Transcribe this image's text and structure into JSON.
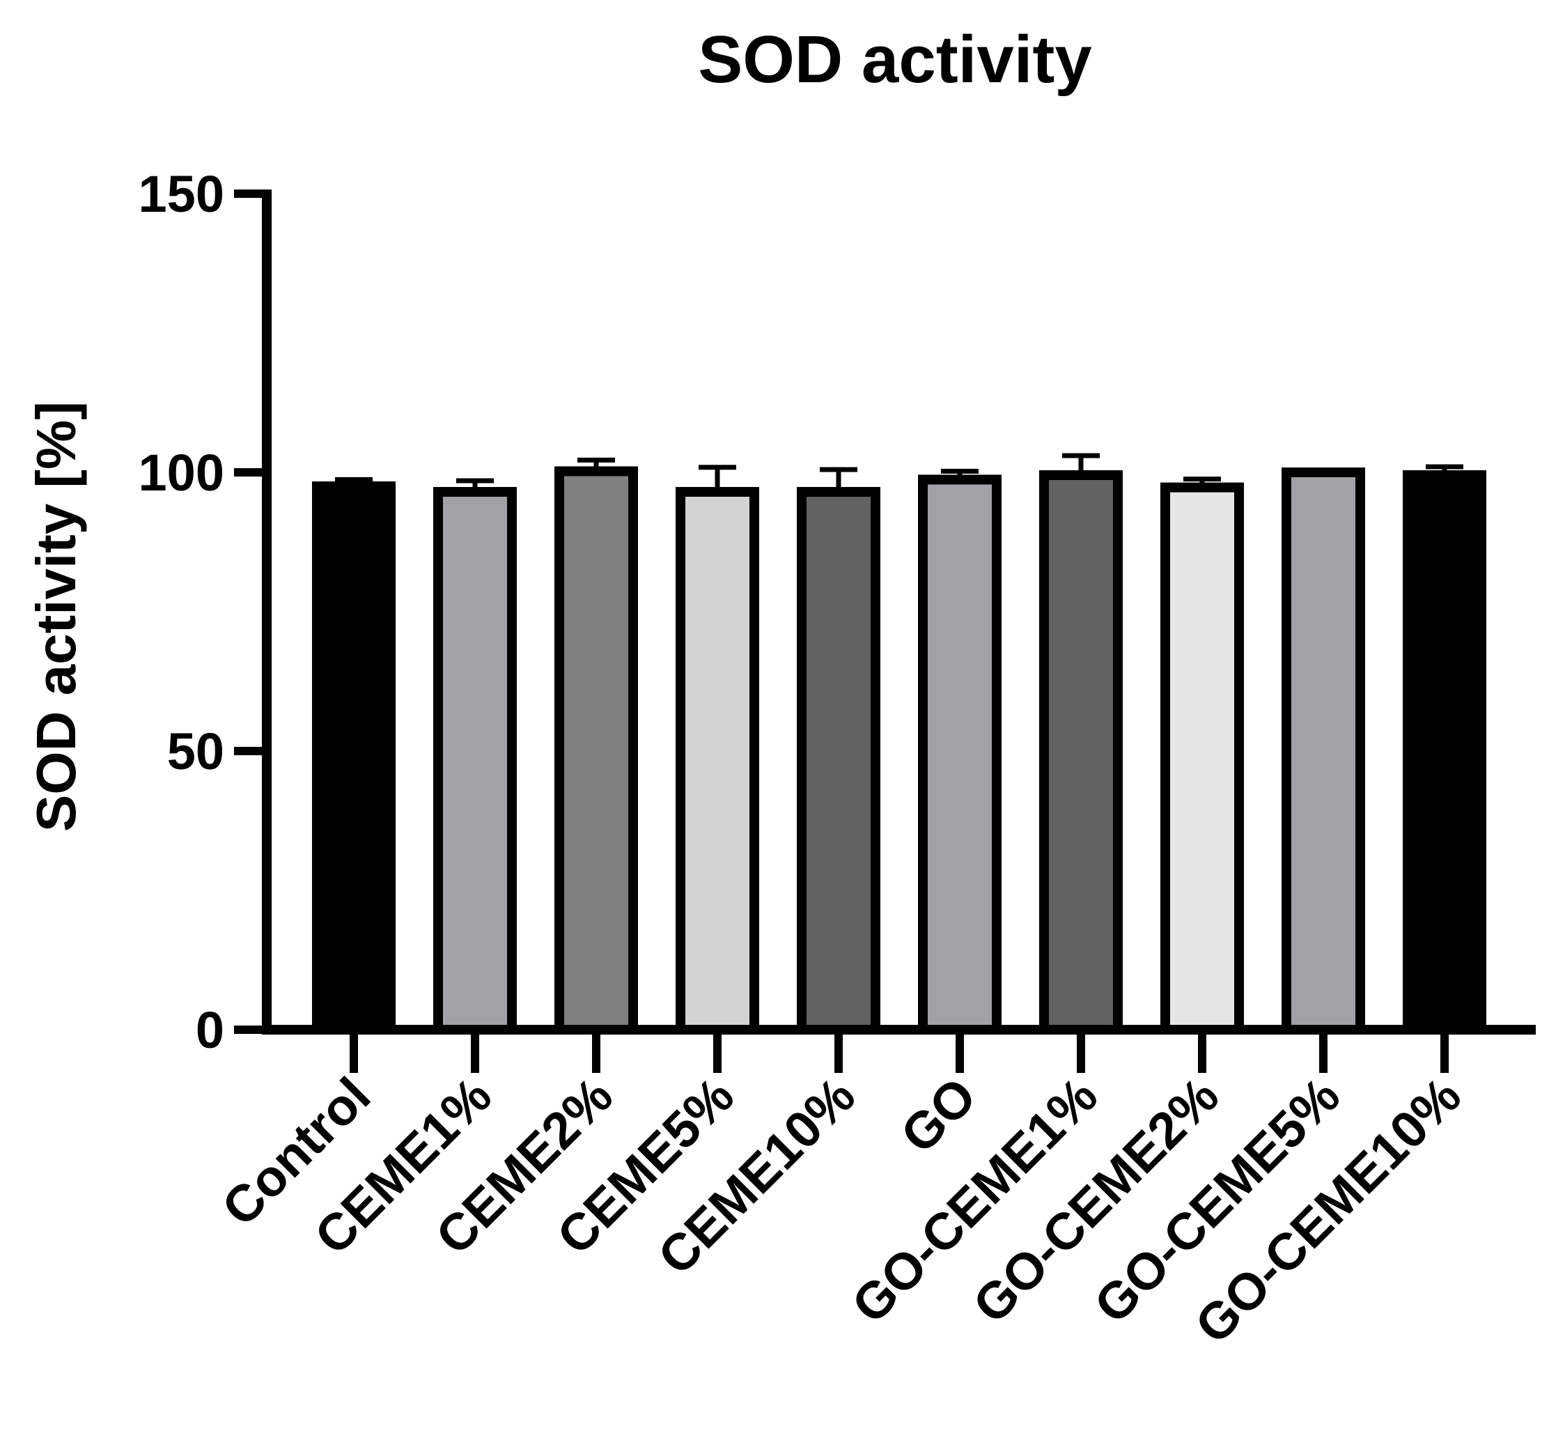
{
  "chart_data": {
    "type": "bar",
    "title": "SOD activity",
    "xlabel": "",
    "ylabel": "SOD activity [%]",
    "ylim": [
      0,
      150
    ],
    "yticks": [
      0,
      50,
      100,
      150
    ],
    "grid": false,
    "categories": [
      "Control",
      "CEME1%",
      "CEME2%",
      "CEME5%",
      "CEME10%",
      "GO",
      "GO-CEME1%",
      "GO-CEME2%",
      "GO-CEME5%",
      "GO-CEME10%"
    ],
    "values": [
      97.5,
      96.5,
      100.2,
      96.5,
      96.5,
      98.7,
      99.5,
      97.3,
      100.0,
      99.5
    ],
    "errors": [
      1.2,
      2.0,
      2.0,
      4.4,
      4.0,
      1.5,
      3.5,
      1.5,
      0.4,
      1.5
    ],
    "colors": [
      "#000000",
      "#a2a2a6",
      "#808080",
      "#d3d3d3",
      "#626262",
      "#a2a2a6",
      "#626262",
      "#e6e6e6",
      "#a2a2a6",
      "#000000"
    ]
  }
}
